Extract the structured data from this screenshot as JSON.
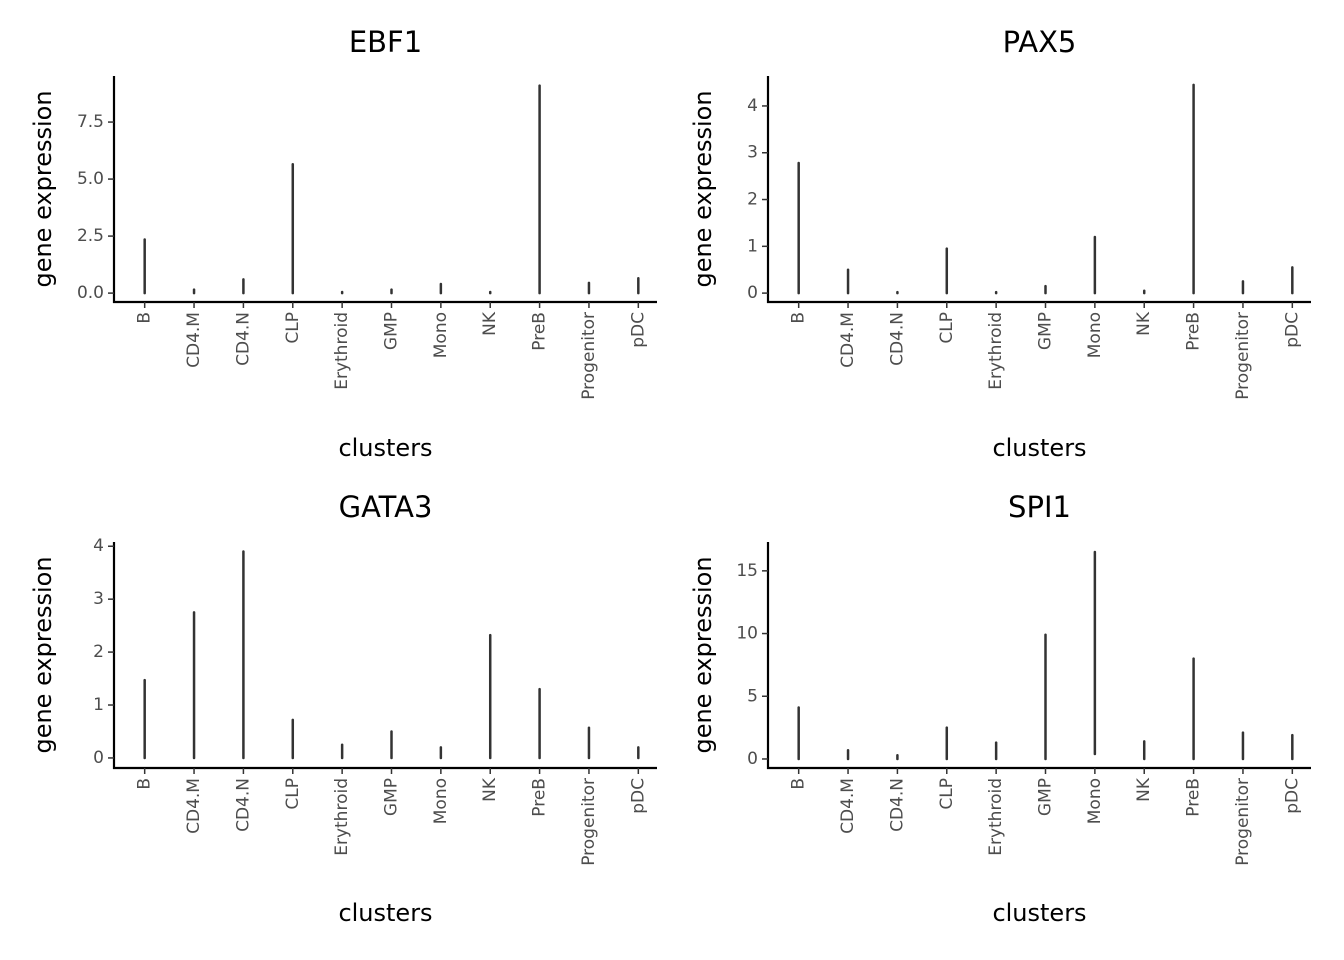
{
  "chart_data": [
    {
      "type": "violin",
      "title": "EBF1",
      "xlabel": "clusters",
      "ylabel": "gene expression",
      "categories": [
        "B",
        "CD4.M",
        "CD4.N",
        "CLP",
        "Erythroid",
        "GMP",
        "Mono",
        "NK",
        "PreB",
        "Progenitor",
        "pDC"
      ],
      "values": [
        2.35,
        0.15,
        0.6,
        5.65,
        0.05,
        0.15,
        0.4,
        0.05,
        9.1,
        0.45,
        0.65
      ],
      "mins": [
        0,
        0,
        0,
        0,
        0,
        0,
        0,
        0,
        0,
        0,
        0
      ],
      "color": "#333333",
      "ylim": [
        -0.39,
        9.52
      ],
      "yticks": [
        {
          "value": 0,
          "label": "0.0"
        },
        2.5,
        {
          "value": 5,
          "label": "5.0"
        },
        7.5
      ]
    },
    {
      "type": "violin",
      "title": "PAX5",
      "xlabel": "clusters",
      "ylabel": "gene expression",
      "categories": [
        "B",
        "CD4.M",
        "CD4.N",
        "CLP",
        "Erythroid",
        "GMP",
        "Mono",
        "NK",
        "PreB",
        "Progenitor",
        "pDC"
      ],
      "values": [
        2.78,
        0.5,
        0.02,
        0.95,
        0.02,
        0.15,
        1.2,
        0.05,
        4.45,
        0.25,
        0.55
      ],
      "mins": [
        0,
        0,
        0,
        0,
        0,
        0,
        0,
        0,
        0,
        0,
        0
      ],
      "color": "#333333",
      "ylim": [
        -0.19,
        4.64
      ],
      "yticks": [
        0,
        1,
        2,
        3,
        4
      ]
    },
    {
      "type": "violin",
      "title": "GATA3",
      "xlabel": "clusters",
      "ylabel": "gene expression",
      "categories": [
        "B",
        "CD4.M",
        "CD4.N",
        "CLP",
        "Erythroid",
        "GMP",
        "Mono",
        "NK",
        "PreB",
        "Progenitor",
        "pDC"
      ],
      "values": [
        1.47,
        2.75,
        3.9,
        0.72,
        0.25,
        0.5,
        0.2,
        2.32,
        1.3,
        0.57,
        0.2
      ],
      "mins": [
        0,
        0,
        0,
        0,
        0,
        0,
        0,
        0,
        0,
        0,
        0
      ],
      "color": "#333333",
      "ylim": [
        -0.19,
        4.08
      ],
      "yticks": [
        0,
        1,
        2,
        3,
        4
      ]
    },
    {
      "type": "violin",
      "title": "SPI1",
      "xlabel": "clusters",
      "ylabel": "gene expression",
      "categories": [
        "B",
        "CD4.M",
        "CD4.N",
        "CLP",
        "Erythroid",
        "GMP",
        "Mono",
        "NK",
        "PreB",
        "Progenitor",
        "pDC"
      ],
      "values": [
        4.1,
        0.7,
        0.3,
        2.5,
        1.3,
        9.9,
        16.5,
        1.4,
        8,
        2.1,
        1.9
      ],
      "mins": [
        0,
        0,
        0,
        0,
        0,
        0,
        0.4,
        0,
        0,
        0,
        0
      ],
      "color": "#333333",
      "ylim": [
        -0.72,
        17.3
      ],
      "yticks": [
        0,
        5,
        10,
        15
      ]
    }
  ]
}
